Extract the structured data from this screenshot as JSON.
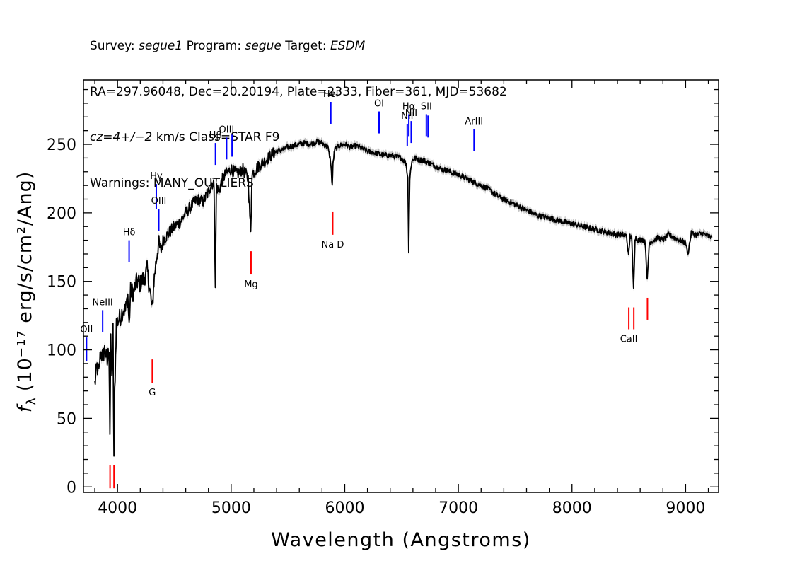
{
  "header": {
    "survey_label": "Survey:",
    "survey": "segue1",
    "program_label": "Program:",
    "program": "segue",
    "target_label": "Target:",
    "target": "ESDM",
    "line2": "RA=297.96048, Dec=20.20194, Plate=2333, Fiber=361, MJD=53682",
    "cz_label": "cz=4+/−2",
    "cz_rest": " km/s Class=STAR F9",
    "warnings": "Warnings: MANY_OUTLIERS"
  },
  "chart_data": {
    "type": "line",
    "xlabel": "Wavelength (Angstroms)",
    "ylabel_symbol": "f",
    "ylabel_sub": "λ",
    "ylabel_unit": "(10⁻¹⁷ erg/s/cm²/Ang)",
    "xlim": [
      3700,
      9290
    ],
    "ylim": [
      -4,
      297
    ],
    "x_ticks": [
      4000,
      5000,
      6000,
      7000,
      8000,
      9000
    ],
    "x_tick_labels": [
      "4000",
      "5000",
      "6000",
      "7000",
      "8000",
      "9000"
    ],
    "y_ticks": [
      0,
      50,
      100,
      150,
      200,
      250
    ],
    "y_tick_labels": [
      "0",
      "50",
      "100",
      "150",
      "200",
      "250"
    ],
    "colors": {
      "spectrum": "#000000",
      "error_band": "#bdbdbd",
      "emission": "#0000ff",
      "absorption": "#ff0000"
    },
    "spectrum": {
      "x": [
        3800,
        3820,
        3835,
        3850,
        3870,
        3890,
        3910,
        3925,
        3933,
        3940,
        3950,
        3960,
        3968,
        3975,
        3990,
        4010,
        4030,
        4050,
        4070,
        4090,
        4102,
        4115,
        4140,
        4170,
        4200,
        4230,
        4260,
        4290,
        4305,
        4320,
        4340,
        4360,
        4380,
        4400,
        4450,
        4500,
        4550,
        4600,
        4650,
        4700,
        4750,
        4800,
        4830,
        4850,
        4861,
        4870,
        4890,
        4920,
        4950,
        5000,
        5050,
        5100,
        5150,
        5172,
        5183,
        5200,
        5250,
        5300,
        5350,
        5400,
        5450,
        5500,
        5550,
        5600,
        5650,
        5700,
        5750,
        5800,
        5850,
        5875,
        5890,
        5896,
        5910,
        5950,
        6000,
        6050,
        6100,
        6150,
        6200,
        6250,
        6300,
        6350,
        6400,
        6450,
        6500,
        6540,
        6555,
        6563,
        6572,
        6590,
        6620,
        6650,
        6700,
        6750,
        6800,
        6850,
        6900,
        6950,
        7000,
        7050,
        7100,
        7150,
        7200,
        7250,
        7300,
        7350,
        7400,
        7450,
        7500,
        7550,
        7600,
        7650,
        7700,
        7750,
        7800,
        7850,
        7900,
        7950,
        8000,
        8050,
        8100,
        8150,
        8200,
        8250,
        8300,
        8350,
        8400,
        8450,
        8480,
        8498,
        8510,
        8525,
        8542,
        8555,
        8570,
        8590,
        8620,
        8645,
        8662,
        8680,
        8720,
        8760,
        8800,
        8850,
        8900,
        8950,
        9000,
        9020,
        9050,
        9100,
        9150,
        9200,
        9230
      ],
      "y": [
        75,
        88,
        82,
        98,
        95,
        101,
        90,
        103,
        40,
        105,
        85,
        115,
        22,
        70,
        120,
        122,
        125,
        130,
        128,
        140,
        118,
        143,
        142,
        150,
        148,
        152,
        158,
        140,
        128,
        150,
        165,
        178,
        172,
        180,
        185,
        190,
        193,
        200,
        205,
        210,
        208,
        215,
        222,
        220,
        143,
        220,
        215,
        224,
        228,
        232,
        228,
        232,
        225,
        185,
        228,
        230,
        235,
        238,
        242,
        245,
        246,
        248,
        249,
        250,
        251,
        250,
        252,
        251,
        248,
        238,
        220,
        235,
        246,
        249,
        250,
        248,
        249,
        247,
        245,
        244,
        243,
        242,
        242,
        241,
        240,
        236,
        225,
        172,
        225,
        238,
        240,
        239,
        238,
        236,
        234,
        232,
        231,
        229,
        228,
        226,
        224,
        222,
        220,
        218,
        215,
        212,
        210,
        208,
        206,
        204,
        202,
        200,
        198,
        197,
        196,
        195,
        194,
        193,
        192,
        191,
        190,
        189,
        188,
        187,
        186,
        185,
        184,
        184,
        183,
        168,
        183,
        182,
        144,
        182,
        181,
        180,
        181,
        178,
        150,
        178,
        180,
        182,
        180,
        184,
        182,
        180,
        178,
        170,
        185,
        184,
        185,
        183,
        182
      ]
    },
    "emission_lines": [
      {
        "label": "OII",
        "x": 3727,
        "y0": 92,
        "y1": 109
      },
      {
        "label": "NeIII",
        "x": 3869,
        "y0": 113,
        "y1": 129
      },
      {
        "label": "Hδ",
        "x": 4102,
        "y0": 164,
        "y1": 180
      },
      {
        "label": "Hγ",
        "x": 4341,
        "y0": 203,
        "y1": 221
      },
      {
        "label": "OIII",
        "x": 4363,
        "y0": 187,
        "y1": 203
      },
      {
        "label": "Hβ",
        "x": 4862,
        "y0": 235,
        "y1": 251
      },
      {
        "label": "OIII",
        "x": 4960,
        "y0": 239,
        "y1": 255
      },
      {
        "label": "",
        "x": 5008,
        "y0": 241,
        "y1": 257
      },
      {
        "label": "HeI",
        "x": 5877,
        "y0": 265,
        "y1": 281
      },
      {
        "label": "OI",
        "x": 6302,
        "y0": 258,
        "y1": 274
      },
      {
        "label": "NII",
        "x": 6550,
        "y0": 249,
        "y1": 265
      },
      {
        "label": "Hα",
        "x": 6564,
        "y0": 256,
        "y1": 272
      },
      {
        "label": "NII",
        "x": 6585,
        "y0": 251,
        "y1": 267
      },
      {
        "label": "SII",
        "x": 6718,
        "y0": 256,
        "y1": 272
      },
      {
        "label": "",
        "x": 6733,
        "y0": 255,
        "y1": 271
      },
      {
        "label": "ArIII",
        "x": 7138,
        "y0": 245,
        "y1": 261
      }
    ],
    "absorption_lines": [
      {
        "label": "",
        "x": 3934,
        "y0": -1,
        "y1": 16
      },
      {
        "label": "",
        "x": 3969,
        "y0": -1,
        "y1": 16
      },
      {
        "label": "G",
        "x": 4306,
        "y0": 76,
        "y1": 93
      },
      {
        "label": "Mg",
        "x": 5175,
        "y0": 155,
        "y1": 172
      },
      {
        "label": "Na D",
        "x": 5894,
        "y0": 184,
        "y1": 201
      },
      {
        "label": "CaII",
        "x": 8500,
        "y0": 115,
        "y1": 131
      },
      {
        "label": "",
        "x": 8544,
        "y0": 115,
        "y1": 131
      },
      {
        "label": "",
        "x": 8664,
        "y0": 122,
        "y1": 138
      }
    ]
  }
}
